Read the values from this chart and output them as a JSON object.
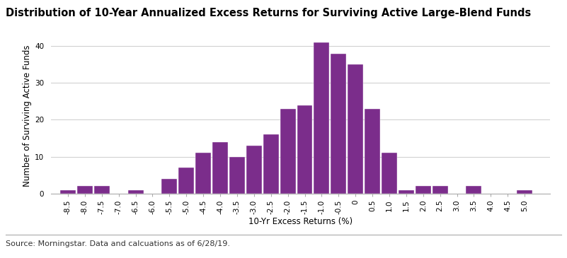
{
  "title": "Distribution of 10-Year Annualized Excess Returns for Surviving Active Large-Blend Funds",
  "xlabel": "10-Yr Excess Returns (%)",
  "ylabel": "Number of Surviving Active Funds",
  "source": "Source: Morningstar. Data and calcuations as of 6/28/19.",
  "bar_color": "#7B2D8B",
  "background_color": "#ffffff",
  "categories": [
    "-8.5",
    "-8.0",
    "-7.5",
    "-7.0",
    "-6.5",
    "-6.0",
    "-5.5",
    "-5.0",
    "-4.5",
    "-4.0",
    "-3.5",
    "-3.0",
    "-2.5",
    "-2.0",
    "-1.5",
    "-1.0",
    "-0.5",
    "0",
    "0.5",
    "1.0",
    "1.5",
    "2.0",
    "2.5",
    "3.0",
    "3.5",
    "4.0",
    "4.5",
    "5.0"
  ],
  "values": [
    1,
    2,
    2,
    0,
    1,
    0,
    4,
    7,
    11,
    14,
    10,
    13,
    16,
    23,
    24,
    41,
    38,
    35,
    23,
    11,
    1,
    2,
    2,
    0,
    2,
    0,
    0,
    1
  ],
  "xlim_left": -9.0,
  "xlim_right": 5.75,
  "ylim": [
    0,
    42
  ],
  "yticks": [
    0,
    10,
    20,
    30,
    40
  ],
  "grid_color": "#cccccc",
  "title_fontsize": 10.5,
  "axis_label_fontsize": 8.5,
  "tick_fontsize": 7.5,
  "source_fontsize": 8
}
